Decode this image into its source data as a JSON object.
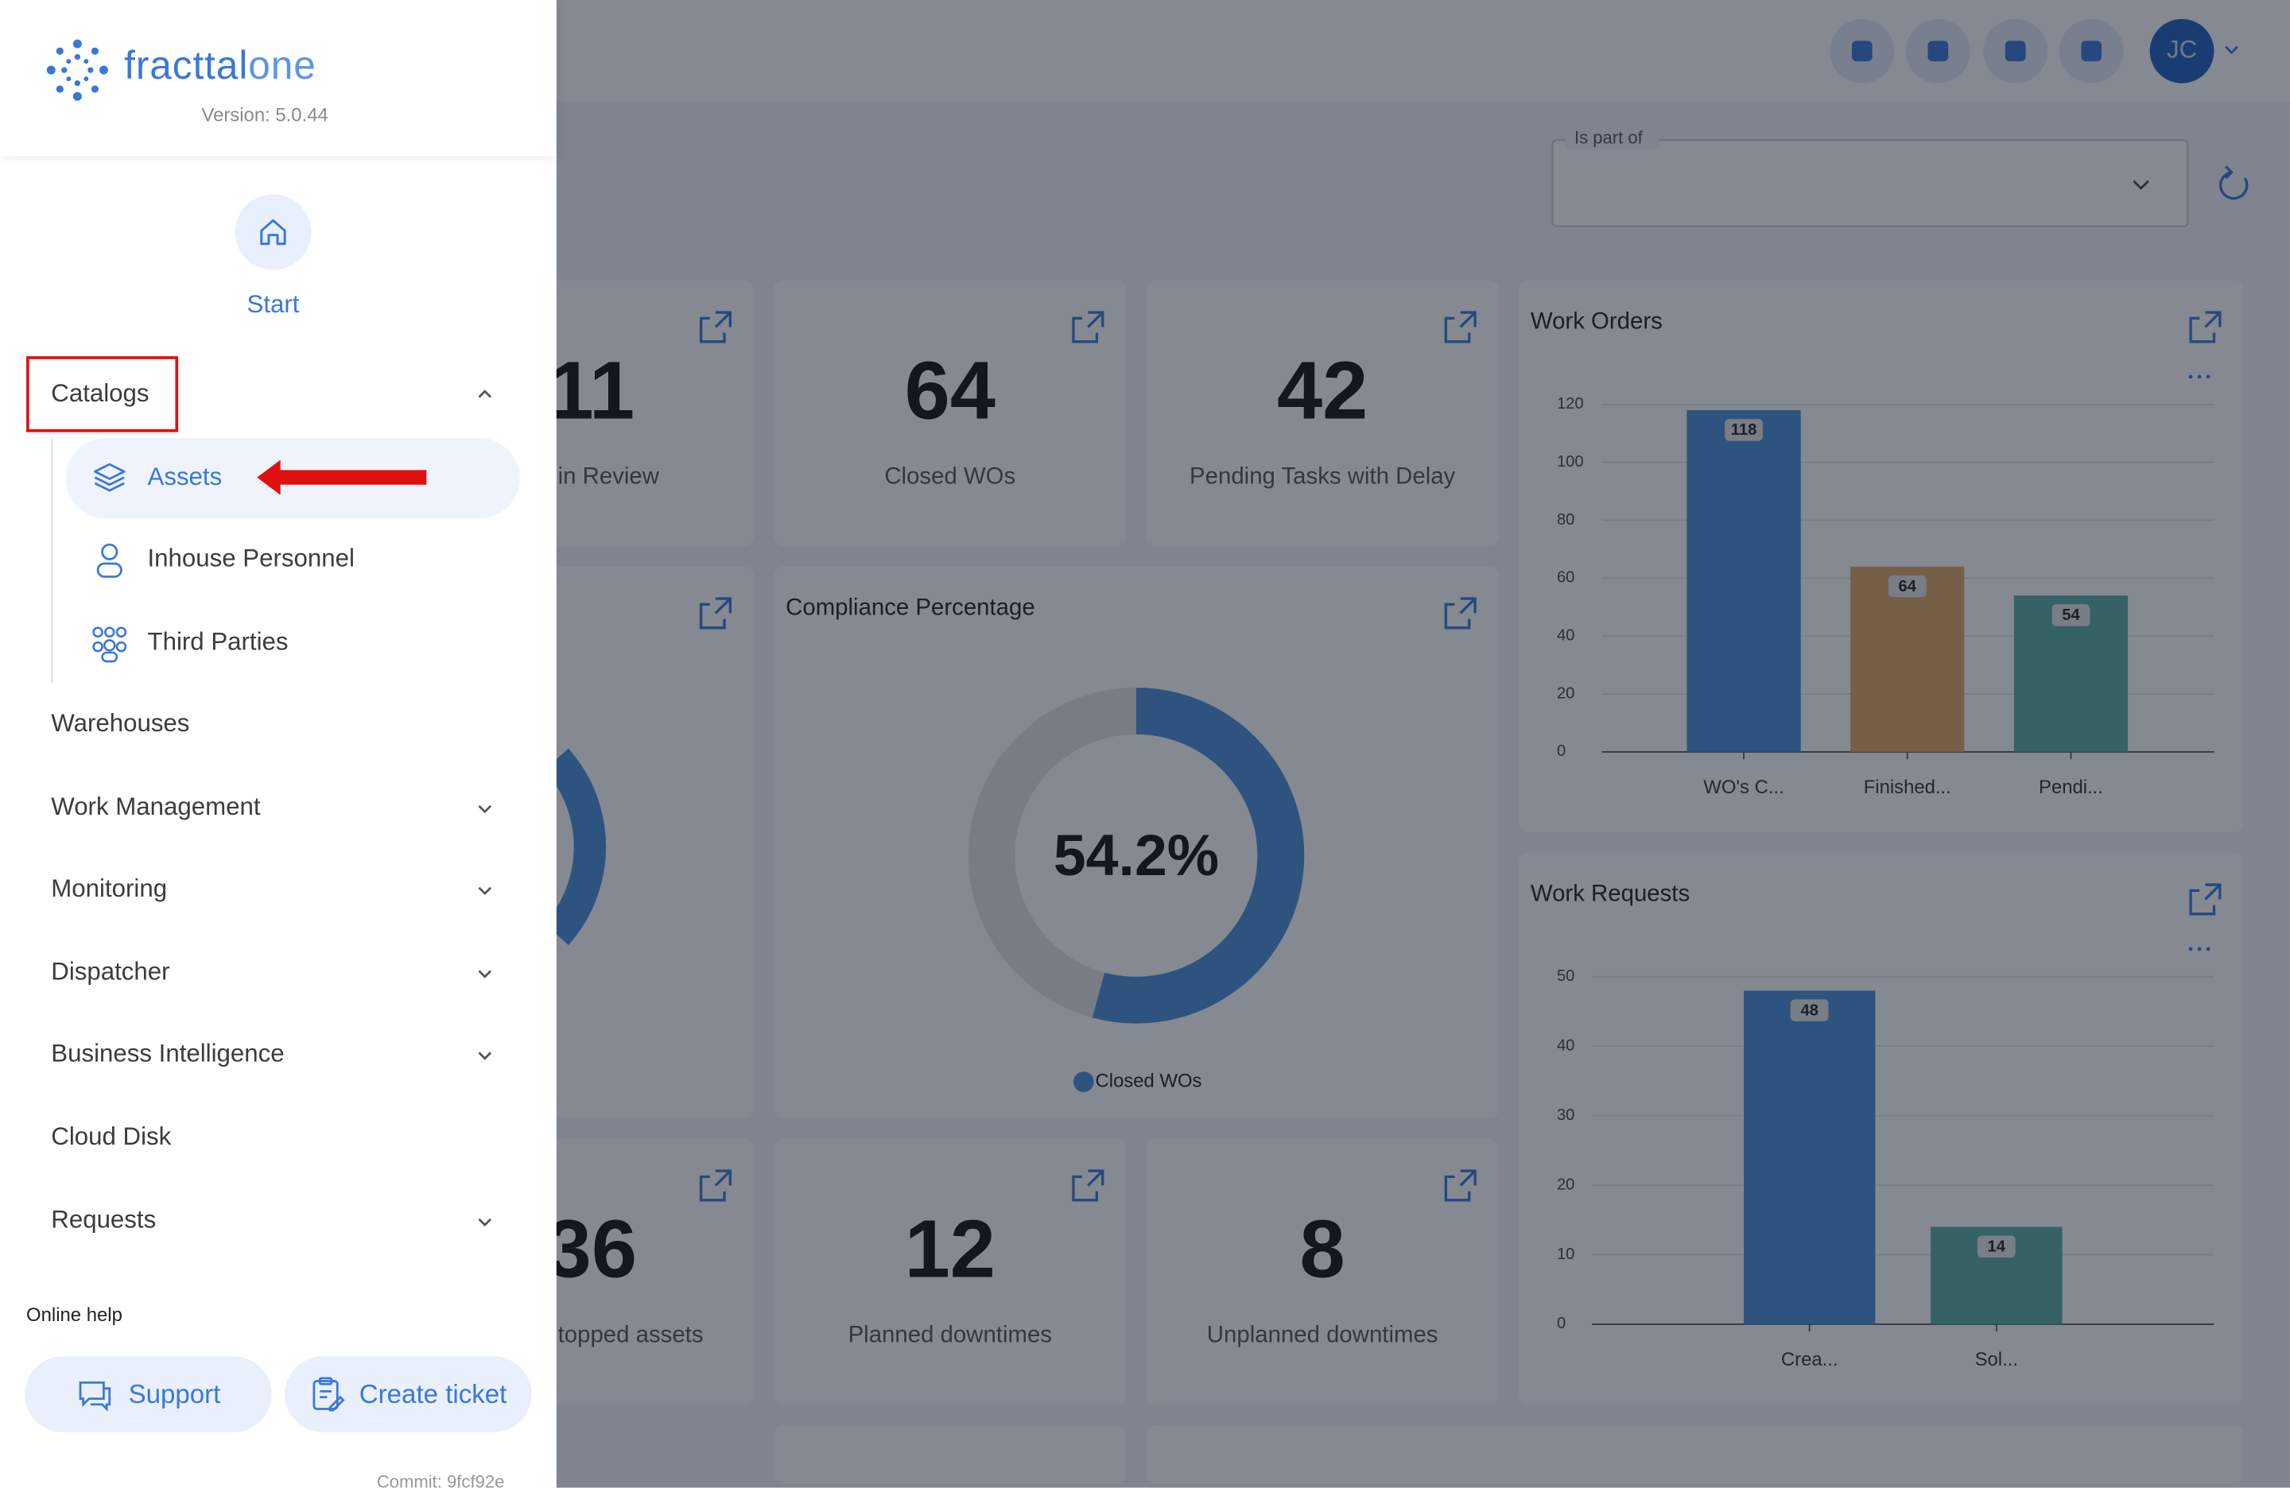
{
  "sidebar": {
    "brand": "fracttal",
    "brand_accent": "one",
    "version": "Version: 5.0.44",
    "start": "Start",
    "menu": [
      "Catalogs",
      "Warehouses",
      "Work Management",
      "Monitoring",
      "Dispatcher",
      "Business Intelligence",
      "Cloud Disk",
      "Requests"
    ],
    "submenu": [
      "Assets",
      "Inhouse Personnel",
      "Third Parties"
    ],
    "online_help": "Online help",
    "support": "Support",
    "create_ticket": "Create ticket",
    "commit": "Commit: 9fcf92e"
  },
  "header": {
    "avatar": "JC"
  },
  "filter": {
    "label": "Is part of"
  },
  "kpis": [
    {
      "value": 11,
      "label": "in Review"
    },
    {
      "value": 64,
      "label": "Closed WOs"
    },
    {
      "value": 42,
      "label": "Pending Tasks with Delay"
    },
    {
      "value": 36,
      "label": "topped assets"
    },
    {
      "value": 12,
      "label": "Planned downtimes"
    },
    {
      "value": 8,
      "label": "Unplanned downtimes"
    }
  ],
  "chart_data": [
    {
      "type": "bar",
      "title": "Work Orders",
      "categories": [
        "WO's C...",
        "Finished...",
        "Pendi..."
      ],
      "values": [
        118,
        64,
        54
      ],
      "colors": [
        "#4a8fd8",
        "#e0a865",
        "#58ad9f"
      ],
      "ylim": [
        0,
        120
      ],
      "yticks": [
        0,
        20,
        40,
        60,
        80,
        100,
        120
      ],
      "grid": true
    },
    {
      "type": "pie",
      "title": "Compliance Percentage",
      "series": [
        {
          "name": "Closed WOs",
          "color": "#4a8fd8",
          "values": [
            54.2
          ],
          "value_labels": [
            "54.2%"
          ]
        }
      ]
    },
    {
      "type": "bar",
      "title": "Work Requests",
      "categories": [
        "Crea...",
        "Sol..."
      ],
      "values": [
        48,
        14
      ],
      "colors": [
        "#4a8fd8",
        "#58ad9f"
      ],
      "ylim": [
        0,
        50
      ],
      "yticks": [
        0,
        10,
        20,
        30,
        40,
        50
      ],
      "grid": true
    }
  ]
}
